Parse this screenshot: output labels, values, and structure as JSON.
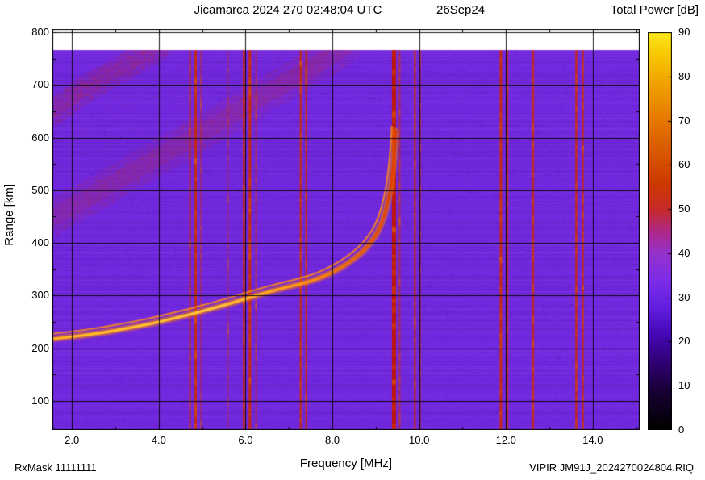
{
  "header": {
    "title": "Jicamarca 2024 270 02:48:04 UTC",
    "date": "26Sep24",
    "colorbar_title": "Total Power [dB]"
  },
  "y_axis_label": "Range [km]",
  "footer": {
    "rx_mask": "RxMask 11111111",
    "xlabel": "Frequency [MHz]",
    "filename": "VIPIR JM91J_2024270024804.RIQ"
  },
  "chart_data": {
    "type": "heatmap",
    "title": "Jicamarca 2024 270 02:48:04 UTC 26Sep24",
    "xlabel": "Frequency [MHz]",
    "ylabel": "Range [km]",
    "zlabel": "Total Power [dB]",
    "x": {
      "range": [
        1.55,
        15.08
      ],
      "major_ticks": [
        {
          "v": 2,
          "label": "2.0"
        },
        {
          "v": 4,
          "label": "4.0"
        },
        {
          "v": 6,
          "label": "6.0"
        },
        {
          "v": 8,
          "label": "8.0"
        },
        {
          "v": 10,
          "label": "10.0"
        },
        {
          "v": 12,
          "label": "12.0"
        },
        {
          "v": 14,
          "label": "14.0"
        }
      ],
      "minor_step_mhz": 1
    },
    "y": {
      "range": [
        45,
        806
      ],
      "major_ticks": [
        {
          "v": 100,
          "label": "100"
        },
        {
          "v": 200,
          "label": "200"
        },
        {
          "v": 300,
          "label": "300"
        },
        {
          "v": 400,
          "label": "400"
        },
        {
          "v": 500,
          "label": "500"
        },
        {
          "v": 600,
          "label": "600"
        },
        {
          "v": 700,
          "label": "700"
        },
        {
          "v": 800,
          "label": "800"
        }
      ],
      "minor_step_km": 50
    },
    "colorbar": {
      "label": "Total Power [dB]",
      "range": [
        0,
        90
      ],
      "ticks": [
        {
          "v": 0,
          "label": "0"
        },
        {
          "v": 10,
          "label": "10"
        },
        {
          "v": 20,
          "label": "20"
        },
        {
          "v": 30,
          "label": "30"
        },
        {
          "v": 40,
          "label": "40"
        },
        {
          "v": 50,
          "label": "50"
        },
        {
          "v": 60,
          "label": "60"
        },
        {
          "v": 70,
          "label": "70"
        },
        {
          "v": 80,
          "label": "80"
        },
        {
          "v": 90,
          "label": "90"
        }
      ],
      "stops": [
        {
          "v": 0,
          "c": "#000000"
        },
        {
          "v": 8,
          "c": "#16002e"
        },
        {
          "v": 15,
          "c": "#2e0070"
        },
        {
          "v": 22,
          "c": "#4708b8"
        },
        {
          "v": 28,
          "c": "#6420e0"
        },
        {
          "v": 34,
          "c": "#7d2ce8"
        },
        {
          "v": 40,
          "c": "#9632cc"
        },
        {
          "v": 45,
          "c": "#b02888"
        },
        {
          "v": 50,
          "c": "#c62a28"
        },
        {
          "v": 56,
          "c": "#cc3a00"
        },
        {
          "v": 63,
          "c": "#d95800"
        },
        {
          "v": 70,
          "c": "#e67800"
        },
        {
          "v": 78,
          "c": "#f0a000"
        },
        {
          "v": 85,
          "c": "#f8c800"
        },
        {
          "v": 90,
          "c": "#ffe81e"
        }
      ]
    },
    "background": {
      "base_db": 28,
      "base_color": "#7228df",
      "speckle_dark": "#2a0078",
      "speckle_light": "#a05aff",
      "tint_color": "#c83c1e"
    },
    "data_top_km": 766,
    "rfi_stripes_mhz": [
      {
        "f": 4.72,
        "w": 2,
        "a": 0.8
      },
      {
        "f": 4.85,
        "w": 3,
        "a": 0.9
      },
      {
        "f": 4.97,
        "w": 1.5,
        "a": 0.5
      },
      {
        "f": 5.6,
        "w": 1.5,
        "a": 0.3
      },
      {
        "f": 5.96,
        "w": 2.5,
        "a": 0.85
      },
      {
        "f": 6.1,
        "w": 3,
        "a": 0.95
      },
      {
        "f": 6.24,
        "w": 1.5,
        "a": 0.45
      },
      {
        "f": 7.27,
        "w": 2.5,
        "a": 0.8
      },
      {
        "f": 7.4,
        "w": 2.5,
        "a": 0.75
      },
      {
        "f": 9.42,
        "w": 5,
        "a": 0.95,
        "c": "#c01400"
      },
      {
        "f": 9.55,
        "w": 2,
        "a": 0.6
      },
      {
        "f": 9.9,
        "w": 2.5,
        "a": 0.7
      },
      {
        "f": 10.03,
        "w": 1.5,
        "a": 0.45
      },
      {
        "f": 11.88,
        "w": 3,
        "a": 0.9
      },
      {
        "f": 12.03,
        "w": 2.5,
        "a": 0.8
      },
      {
        "f": 12.62,
        "w": 3,
        "a": 0.8
      },
      {
        "f": 13.62,
        "w": 2.5,
        "a": 0.85
      },
      {
        "f": 13.77,
        "w": 2.5,
        "a": 0.8
      }
    ],
    "ionogram_trace": {
      "critical_freq_mhz": 9.45,
      "points_mhz_km": [
        [
          1.58,
          218
        ],
        [
          2.0,
          222
        ],
        [
          2.4,
          226
        ],
        [
          2.8,
          231
        ],
        [
          3.2,
          237
        ],
        [
          3.6,
          243
        ],
        [
          4.0,
          250
        ],
        [
          4.4,
          258
        ],
        [
          4.8,
          266
        ],
        [
          5.2,
          275
        ],
        [
          5.6,
          284
        ],
        [
          6.0,
          294
        ],
        [
          6.4,
          304
        ],
        [
          6.8,
          313
        ],
        [
          7.1,
          319
        ],
        [
          7.4,
          325
        ],
        [
          7.7,
          333
        ],
        [
          8.0,
          344
        ],
        [
          8.3,
          358
        ],
        [
          8.6,
          376
        ],
        [
          8.8,
          392
        ],
        [
          9.0,
          414
        ],
        [
          9.1,
          430
        ],
        [
          9.2,
          452
        ],
        [
          9.3,
          484
        ],
        [
          9.36,
          516
        ],
        [
          9.41,
          552
        ],
        [
          9.44,
          584
        ],
        [
          9.46,
          612
        ]
      ],
      "echo_offset": {
        "dx_mhz": -0.09,
        "dy_km": 9
      },
      "glow_color": "#ff7800",
      "gradient": [
        {
          "pos": 0,
          "c": "#ffb41e"
        },
        {
          "pos": 0.45,
          "c": "#ffc83c"
        },
        {
          "pos": 0.72,
          "c": "#ff9612"
        },
        {
          "pos": 0.88,
          "c": "#f06400"
        },
        {
          "pos": 1,
          "c": "#dc3c00"
        }
      ]
    },
    "diffuse_echo_bands": [
      {
        "color": "#cd2d19",
        "alpha": 0.13,
        "width_km": 34,
        "points_mhz_km": [
          [
            1.55,
            448
          ],
          [
            2.5,
            492
          ],
          [
            3.5,
            540
          ],
          [
            4.5,
            586
          ],
          [
            5.5,
            634
          ],
          [
            6.5,
            684
          ],
          [
            7.5,
            732
          ],
          [
            8.3,
            772
          ]
        ]
      },
      {
        "color": "#cd2d19",
        "alpha": 0.1,
        "width_km": 26,
        "points_mhz_km": [
          [
            1.55,
            648
          ],
          [
            2.2,
            688
          ],
          [
            3.0,
            726
          ],
          [
            3.8,
            762
          ],
          [
            4.2,
            782
          ]
        ]
      }
    ]
  }
}
